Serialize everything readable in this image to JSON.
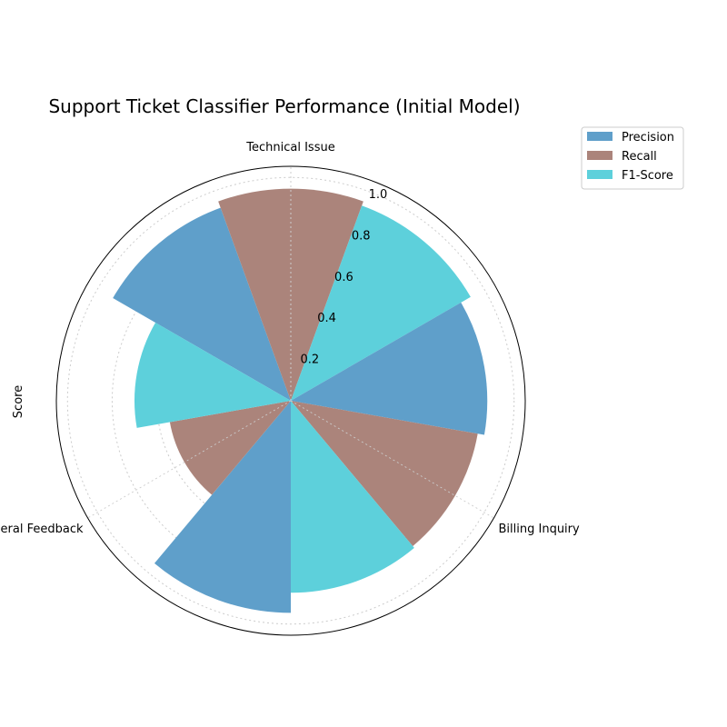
{
  "chart_data": {
    "type": "polar-bar",
    "title": "Support Ticket Classifier Performance (Initial Model)",
    "ylabel": "Score",
    "categories": [
      "Technical Issue",
      "Billing Inquiry",
      "General Feedback"
    ],
    "radial_ticks": [
      "0.2",
      "0.4",
      "0.6",
      "0.8",
      "1.0"
    ],
    "rlim": [
      0,
      1.05
    ],
    "grid": true,
    "legend_position": "top-right, outside plot",
    "series": [
      {
        "name": "Precision",
        "color": "#5f9fca",
        "values": [
          0.92,
          0.88,
          0.95
        ]
      },
      {
        "name": "Recall",
        "color": "#ab847b",
        "values": [
          0.95,
          0.85,
          0.55
        ]
      },
      {
        "name": "F1-Score",
        "color": "#5dd0db",
        "values": [
          0.93,
          0.86,
          0.7
        ]
      }
    ]
  }
}
